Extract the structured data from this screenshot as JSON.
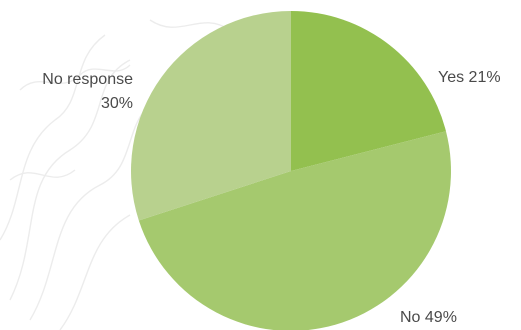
{
  "chart_data": {
    "type": "pie",
    "slices": [
      {
        "label": "Yes",
        "value": 21,
        "label_text": "Yes 21%",
        "color": "#93c04f"
      },
      {
        "label": "No",
        "value": 49,
        "label_text": "No 49%",
        "color": "#a5c96e"
      },
      {
        "label": "No response",
        "value": 30,
        "label_text": [
          "No response",
          "30%"
        ],
        "color": "#b8d18e"
      }
    ],
    "start_angle_deg": 0,
    "direction": "clockwise"
  }
}
